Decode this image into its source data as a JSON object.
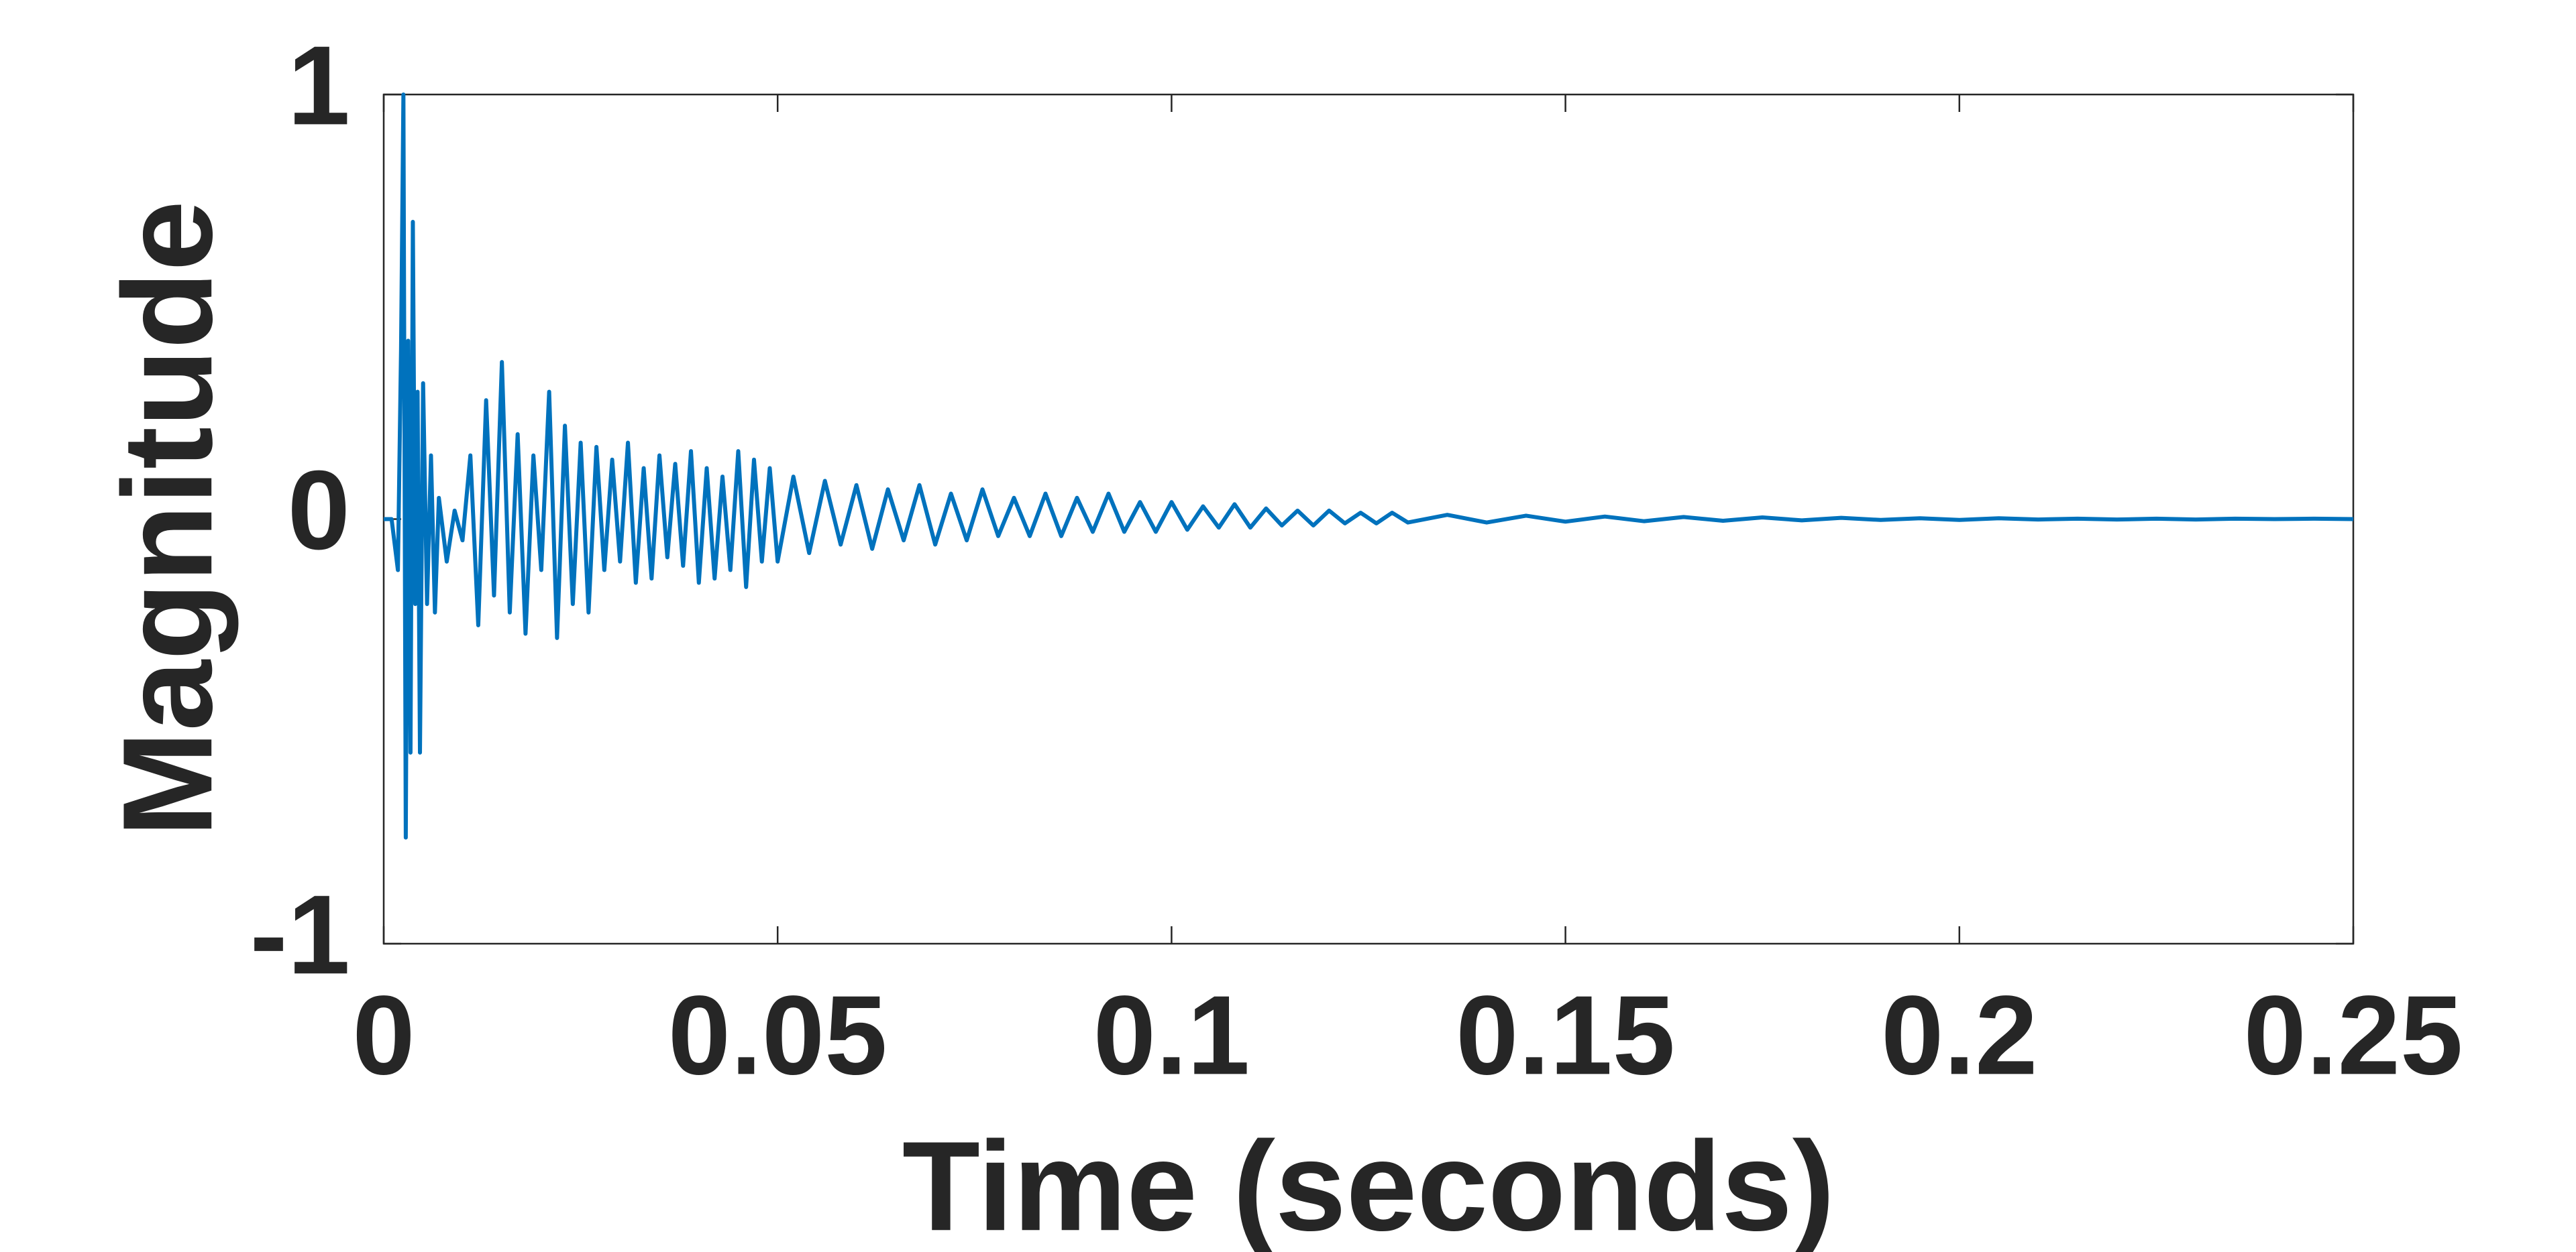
{
  "chart_data": {
    "type": "line",
    "x_label": "Time (seconds)",
    "y_label": "Magnitude",
    "x": [
      0,
      0.001,
      0.0018,
      0.0022,
      0.0025,
      0.0028,
      0.0031,
      0.0034,
      0.0037,
      0.004,
      0.0043,
      0.0046,
      0.005,
      0.0055,
      0.006,
      0.0065,
      0.007,
      0.008,
      0.009,
      0.01,
      0.011,
      0.012,
      0.013,
      0.014,
      0.015,
      0.016,
      0.017,
      0.018,
      0.019,
      0.02,
      0.021,
      0.022,
      0.023,
      0.024,
      0.025,
      0.026,
      0.027,
      0.028,
      0.029,
      0.03,
      0.031,
      0.032,
      0.033,
      0.034,
      0.035,
      0.036,
      0.037,
      0.038,
      0.039,
      0.04,
      0.041,
      0.042,
      0.043,
      0.044,
      0.045,
      0.046,
      0.047,
      0.048,
      0.049,
      0.05,
      0.052,
      0.054,
      0.056,
      0.058,
      0.06,
      0.062,
      0.064,
      0.066,
      0.068,
      0.07,
      0.072,
      0.074,
      0.076,
      0.078,
      0.08,
      0.082,
      0.084,
      0.086,
      0.088,
      0.09,
      0.092,
      0.094,
      0.096,
      0.098,
      0.1,
      0.102,
      0.104,
      0.106,
      0.108,
      0.11,
      0.112,
      0.114,
      0.116,
      0.118,
      0.12,
      0.122,
      0.124,
      0.126,
      0.128,
      0.13,
      0.135,
      0.14,
      0.145,
      0.15,
      0.155,
      0.16,
      0.165,
      0.17,
      0.175,
      0.18,
      0.185,
      0.19,
      0.195,
      0.2,
      0.205,
      0.21,
      0.215,
      0.22,
      0.225,
      0.23,
      0.235,
      0.24,
      0.245,
      0.25
    ],
    "series": [
      {
        "color": "#0072bd",
        "values": [
          0,
          0,
          -0.12,
          0.4,
          1,
          -0.75,
          0.42,
          -0.55,
          0.7,
          -0.2,
          0.3,
          -0.55,
          0.32,
          -0.2,
          0.15,
          -0.22,
          0.05,
          -0.1,
          0.02,
          -0.05,
          0.15,
          -0.25,
          0.28,
          -0.18,
          0.37,
          -0.22,
          0.2,
          -0.27,
          0.15,
          -0.12,
          0.3,
          -0.28,
          0.22,
          -0.2,
          0.18,
          -0.22,
          0.17,
          -0.12,
          0.14,
          -0.1,
          0.18,
          -0.15,
          0.12,
          -0.14,
          0.15,
          -0.09,
          0.13,
          -0.11,
          0.16,
          -0.15,
          0.12,
          -0.14,
          0.1,
          -0.12,
          0.16,
          -0.16,
          0.14,
          -0.1,
          0.12,
          -0.1,
          0.1,
          -0.08,
          0.09,
          -0.06,
          0.08,
          -0.07,
          0.07,
          -0.05,
          0.08,
          -0.06,
          0.06,
          -0.05,
          0.07,
          -0.04,
          0.05,
          -0.04,
          0.06,
          -0.04,
          0.05,
          -0.03,
          0.06,
          -0.03,
          0.04,
          -0.03,
          0.04,
          -0.025,
          0.03,
          -0.02,
          0.035,
          -0.02,
          0.025,
          -0.015,
          0.02,
          -0.015,
          0.02,
          -0.01,
          0.015,
          -0.01,
          0.015,
          -0.008,
          0.01,
          -0.008,
          0.008,
          -0.006,
          0.006,
          -0.005,
          0.005,
          -0.004,
          0.004,
          -0.003,
          0.003,
          -0.002,
          0.002,
          -0.002,
          0.002,
          -0.001,
          0.001,
          -0.001,
          0.001,
          -0.001,
          0.001,
          0,
          0.001,
          0
        ]
      }
    ],
    "xlim": [
      0,
      0.25
    ],
    "xticks": [
      0,
      0.05,
      0.1,
      0.15,
      0.2,
      0.25
    ],
    "ylim": [
      -1,
      1
    ],
    "yticks": [
      -1,
      0,
      1
    ],
    "grid": false
  }
}
